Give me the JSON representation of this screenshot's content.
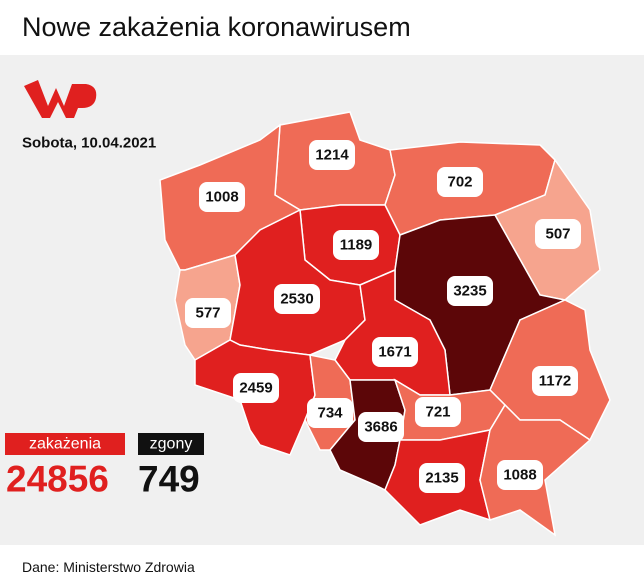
{
  "title": "Nowe zakażenia koronawirusem",
  "date": "Sobota, 10.04.2021",
  "regions": [
    {
      "value": 1214,
      "color": "#ef6b56"
    },
    {
      "value": 702,
      "color": "#ef6b56"
    },
    {
      "value": 1008,
      "color": "#ef6b56"
    },
    {
      "value": 1189,
      "color": "#e0201f"
    },
    {
      "value": 507,
      "color": "#f6a48e"
    },
    {
      "value": 3235,
      "color": "#5c0608"
    },
    {
      "value": 577,
      "color": "#f6a48e"
    },
    {
      "value": 2530,
      "color": "#e0201f"
    },
    {
      "value": 1671,
      "color": "#e0201f"
    },
    {
      "value": 1172,
      "color": "#ef6b56"
    },
    {
      "value": 2459,
      "color": "#e0201f"
    },
    {
      "value": 734,
      "color": "#ef6b56"
    },
    {
      "value": 3686,
      "color": "#5c0608"
    },
    {
      "value": 721,
      "color": "#ef6b56"
    },
    {
      "value": 2135,
      "color": "#e0201f"
    },
    {
      "value": 1088,
      "color": "#ef6b56"
    }
  ],
  "summary": {
    "cases_label": "zakażenia",
    "cases": 24856,
    "deaths_label": "zgony",
    "deaths": 749
  },
  "source": "Dane: Ministerstwo Zdrowia"
}
